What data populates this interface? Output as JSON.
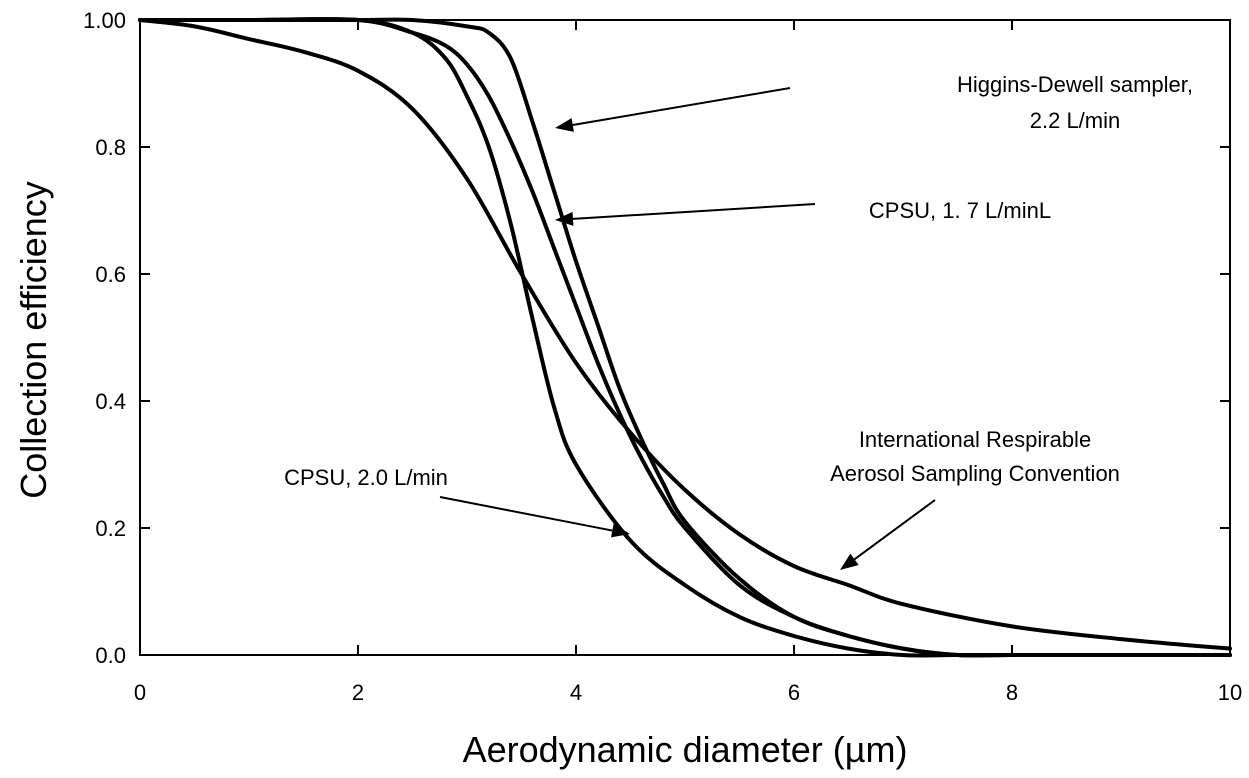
{
  "chart_data": {
    "type": "line",
    "title": "",
    "xlabel": "Aerodynamic diameter (µm)",
    "ylabel": "Collection efficiency",
    "xlim": [
      0,
      10
    ],
    "ylim": [
      0,
      1
    ],
    "xticks": [
      0,
      2,
      4,
      6,
      8,
      10
    ],
    "xtick_labels": [
      "0",
      "2",
      "4",
      "6",
      "8",
      "10"
    ],
    "yticks": [
      0,
      0.2,
      0.4,
      0.6,
      0.8,
      1.0
    ],
    "ytick_labels": [
      "0.0",
      "0.2",
      "0.4",
      "0.6",
      "0.8",
      "1.00"
    ],
    "grid": false,
    "legend": "none",
    "series": [
      {
        "name": "Higgins-Dewell sampler, 2.2 L/min",
        "x": [
          0,
          1,
          2,
          2.5,
          3,
          3.2,
          3.4,
          3.6,
          3.8,
          4,
          4.2,
          4.4,
          4.6,
          4.8,
          5,
          5.5,
          6,
          6.5,
          7,
          7.5,
          8,
          9,
          10
        ],
        "y": [
          1.0,
          1.0,
          1.0,
          1.0,
          0.99,
          0.98,
          0.94,
          0.84,
          0.73,
          0.62,
          0.52,
          0.42,
          0.34,
          0.27,
          0.21,
          0.12,
          0.06,
          0.03,
          0.01,
          0.0,
          0.0,
          0.0,
          0.0
        ]
      },
      {
        "name": "CPSU, 1. 7 L/minL",
        "x": [
          0,
          1,
          2,
          2.5,
          2.8,
          3,
          3.2,
          3.4,
          3.6,
          3.8,
          4,
          4.2,
          4.4,
          4.6,
          4.8,
          5,
          5.5,
          6,
          6.5,
          7,
          7.5,
          8,
          9,
          10
        ],
        "y": [
          1.0,
          1.0,
          1.0,
          0.98,
          0.96,
          0.93,
          0.88,
          0.81,
          0.73,
          0.64,
          0.55,
          0.46,
          0.38,
          0.31,
          0.25,
          0.2,
          0.11,
          0.06,
          0.03,
          0.01,
          0.0,
          0.0,
          0.0,
          0.0
        ]
      },
      {
        "name": "CPSU, 2.0 L/min",
        "x": [
          0,
          1,
          2,
          2.5,
          2.8,
          3,
          3.2,
          3.4,
          3.6,
          3.8,
          4,
          4.5,
          5,
          5.5,
          6,
          6.5,
          7,
          7.5,
          8,
          9,
          10
        ],
        "y": [
          1.0,
          1.0,
          1.0,
          0.98,
          0.94,
          0.88,
          0.8,
          0.68,
          0.53,
          0.39,
          0.3,
          0.18,
          0.11,
          0.06,
          0.03,
          0.01,
          0.0,
          0.0,
          0.0,
          0.0,
          0.0
        ]
      },
      {
        "name": "International Respirable Aerosol Sampling Convention",
        "x": [
          0,
          0.5,
          1,
          1.5,
          2,
          2.5,
          3,
          3.5,
          4,
          4.5,
          5,
          5.5,
          6,
          6.5,
          7,
          8,
          9,
          10
        ],
        "y": [
          1.0,
          0.99,
          0.97,
          0.95,
          0.92,
          0.86,
          0.75,
          0.6,
          0.46,
          0.35,
          0.26,
          0.19,
          0.14,
          0.11,
          0.08,
          0.045,
          0.025,
          0.01
        ]
      }
    ],
    "annotations": [
      {
        "lines": [
          "Higgins-Dewell sampler,",
          "2.2 L/min"
        ]
      },
      {
        "lines": [
          "CPSU, 1. 7 L/minL"
        ]
      },
      {
        "lines": [
          "CPSU, 2.0 L/min"
        ]
      },
      {
        "lines": [
          "International Respirable",
          "Aerosol Sampling Convention"
        ]
      }
    ]
  }
}
